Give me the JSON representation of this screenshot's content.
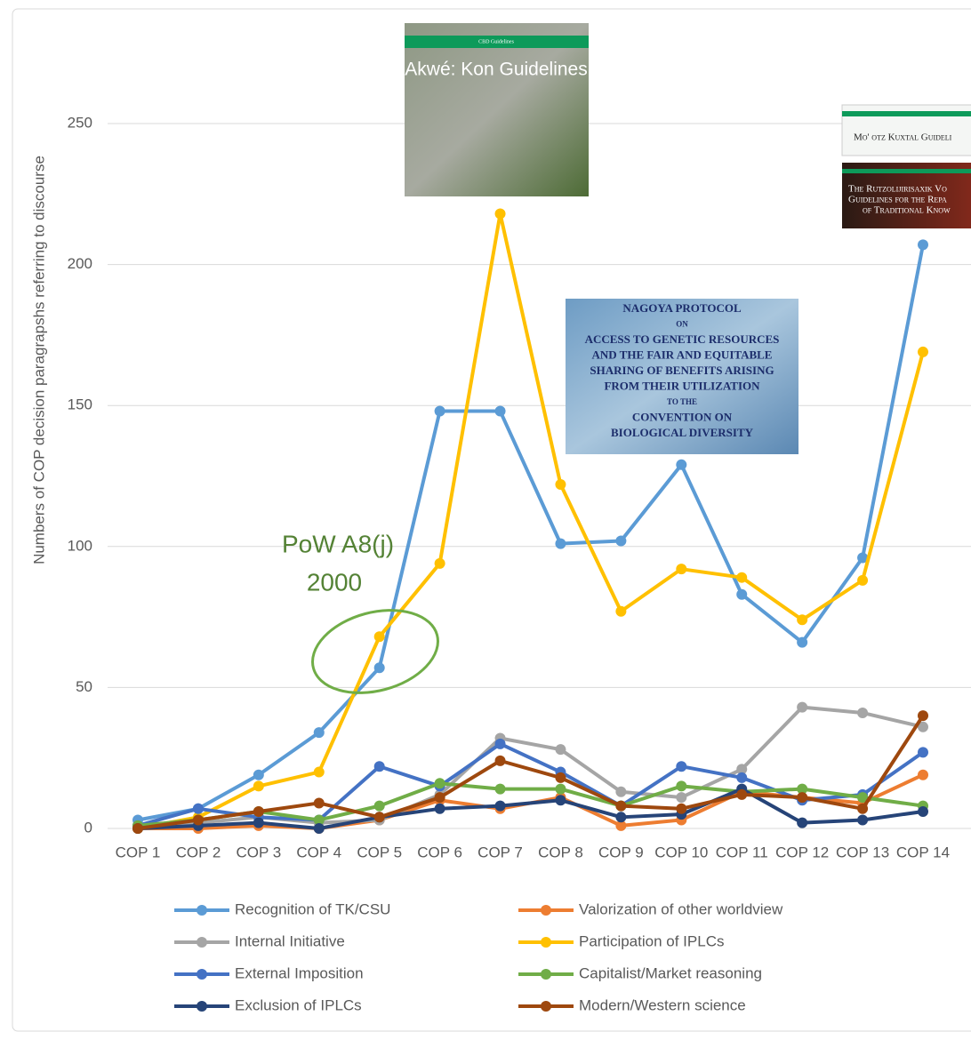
{
  "chart_data": {
    "type": "line",
    "y_label": "Numbers of COP decision paragrapshs referring to discourse",
    "categories": [
      "COP 1",
      "COP 2",
      "COP 3",
      "COP 4",
      "COP 5",
      "COP 6",
      "COP 7",
      "COP 8",
      "COP 9",
      "COP 10",
      "COP 11",
      "COP 12",
      "COP 13",
      "COP 14"
    ],
    "series": [
      {
        "name": "Recognition of TK/CSU",
        "color": "#5b9bd5",
        "values": [
          3,
          7,
          19,
          34,
          57,
          148,
          148,
          101,
          102,
          129,
          83,
          66,
          96,
          207
        ]
      },
      {
        "name": "Valorization of other worldview",
        "color": "#ed7d31",
        "values": [
          0,
          0,
          1,
          0,
          3,
          10,
          7,
          11,
          1,
          3,
          13,
          11,
          9,
          19
        ]
      },
      {
        "name": "Internal Initiative",
        "color": "#a5a5a5",
        "values": [
          1,
          2,
          4,
          2,
          3,
          12,
          32,
          28,
          13,
          11,
          21,
          43,
          41,
          36
        ]
      },
      {
        "name": "Participation of IPLCs",
        "color": "#ffc000",
        "values": [
          0,
          4,
          15,
          20,
          68,
          94,
          218,
          122,
          77,
          92,
          89,
          74,
          88,
          169
        ]
      },
      {
        "name": "External Imposition",
        "color": "#4472c4",
        "values": [
          1,
          7,
          4,
          3,
          22,
          15,
          30,
          20,
          8,
          22,
          18,
          10,
          12,
          27
        ]
      },
      {
        "name": "Capitalist/Market reasoning",
        "color": "#70ad47",
        "values": [
          1,
          3,
          6,
          3,
          8,
          16,
          14,
          14,
          8,
          15,
          13,
          14,
          11,
          8
        ]
      },
      {
        "name": "Exclusion of IPLCs",
        "color": "#264478",
        "values": [
          0,
          1,
          2,
          0,
          4,
          7,
          8,
          10,
          4,
          5,
          14,
          2,
          3,
          6
        ]
      },
      {
        "name": "Modern/Western science",
        "color": "#9e480e",
        "values": [
          0,
          3,
          6,
          9,
          4,
          11,
          24,
          18,
          8,
          7,
          12,
          11,
          7,
          40
        ]
      }
    ],
    "ylim": [
      0,
      250
    ],
    "yticks": [
      0,
      50,
      100,
      150,
      200,
      250
    ],
    "grid": true,
    "annotations": [
      "PoW A8(j)",
      "2000"
    ],
    "covers": [
      {
        "lines": [
          "CBD Guidelines",
          "Akwé: Kon Guidelines"
        ]
      },
      {
        "lines": [
          "NAGOYA PROTOCOL",
          "ON",
          "ACCESS TO GENETIC RESOURCES",
          "AND THE FAIR AND EQUITABLE",
          "SHARING OF BENEFITS ARISING",
          "FROM THEIR UTILIZATION",
          "TO THE",
          "CONVENTION ON",
          "BIOLOGICAL DIVERSITY"
        ]
      },
      {
        "lines": [
          "Mo' otz Kuxtal Guideli"
        ]
      },
      {
        "lines": [
          "The Rutzolijirisaxik Vo",
          "Guidelines for the Repa",
          "of Traditional Know"
        ]
      }
    ]
  }
}
